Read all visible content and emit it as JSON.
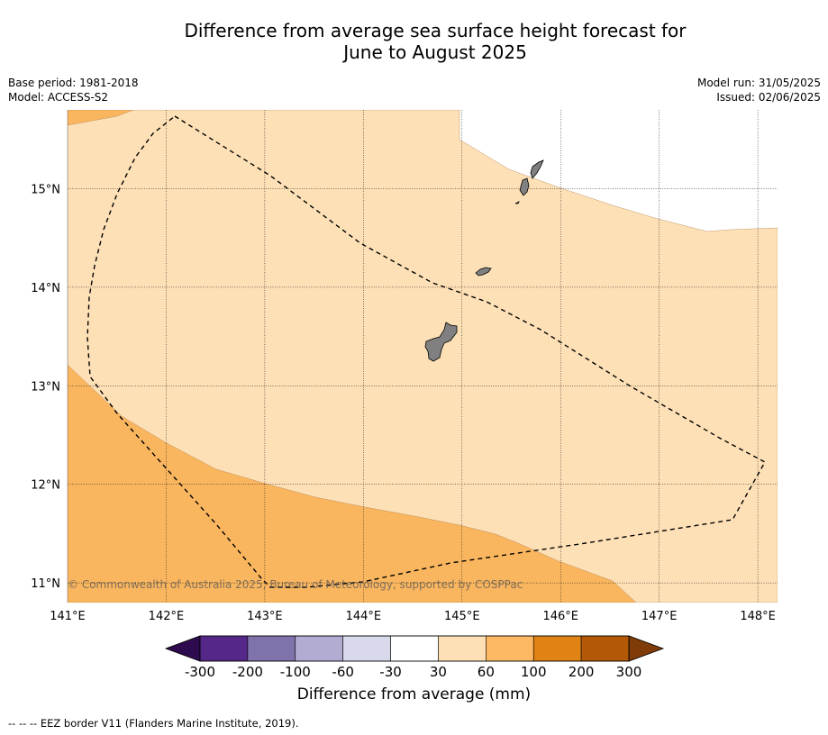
{
  "title": {
    "line1": "Difference from average sea surface height forecast for",
    "line2": "June to August 2025"
  },
  "info_left": {
    "base_period": "Base period: 1981-2018",
    "model": "Model: ACCESS-S2"
  },
  "info_right": {
    "model_run": "Model run: 31/05/2025",
    "issued": "Issued: 02/06/2025"
  },
  "map": {
    "lon_range": [
      141.0,
      148.2
    ],
    "lat_range": [
      10.8,
      15.8
    ],
    "lon_ticks": [
      "141°E",
      "142°E",
      "143°E",
      "144°E",
      "145°E",
      "146°E",
      "147°E",
      "148°E"
    ],
    "lat_ticks": [
      "15°N",
      "14°N",
      "13°N",
      "12°N",
      "11°N"
    ],
    "copyright": "© Commonwealth of Australia 2025, Bureau of Meteorology, supported by COSPPac",
    "colors": {
      "band_30_60": "#fde0b6",
      "band_60_100": "#fab65f",
      "land": "#808080"
    }
  },
  "colorbar": {
    "ticks": [
      "-300",
      "-200",
      "-100",
      "-60",
      "-30",
      "30",
      "60",
      "100",
      "200",
      "300"
    ],
    "colors": [
      "#2d0b4e",
      "#542788",
      "#8073ac",
      "#b2abd2",
      "#d8daeb",
      "#ffffff",
      "#fee0b6",
      "#fdb863",
      "#e08214",
      "#b35806",
      "#7f3b08"
    ],
    "label": "Difference from average (mm)"
  },
  "footnote": "--  --  -- EEZ border V11 (Flanders Marine Institute, 2019)."
}
